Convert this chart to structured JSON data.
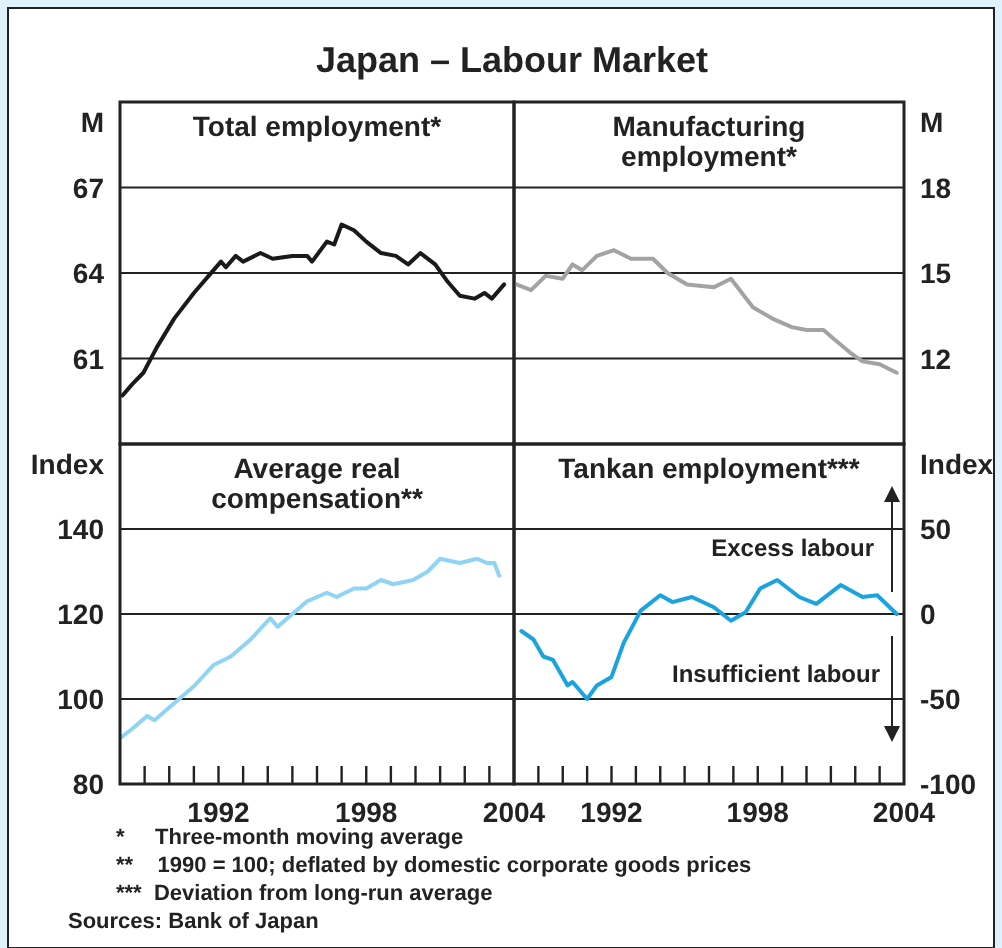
{
  "chart_data": [
    {
      "type": "line",
      "title": "Japan – Labour Market",
      "subtitle": "Total employment*",
      "ylabel": "M",
      "xlim": [
        1988,
        2004
      ],
      "ylim": [
        58,
        70
      ],
      "yticks": [
        61,
        64,
        67
      ],
      "grid": "y",
      "tick_labels": "y",
      "series": [
        {
          "color": "#1a1a1a",
          "x": [
            1988.1,
            1988.5,
            1988.95,
            1989.5,
            1990.2,
            1991.0,
            1991.8,
            1992.1,
            1992.3,
            1992.7,
            1993.0,
            1993.7,
            1994.2,
            1995.0,
            1995.6,
            1995.8,
            1996.4,
            1996.7,
            1997.0,
            1997.5,
            1998.0,
            1998.6,
            1999.2,
            1999.7,
            2000.2,
            2000.8,
            2001.3,
            2001.8,
            2002.4,
            2002.8,
            2003.1,
            2003.6
          ],
          "values": [
            59.7,
            60.1,
            60.5,
            61.4,
            62.4,
            63.3,
            64.1,
            64.4,
            64.2,
            64.6,
            64.4,
            64.7,
            64.5,
            64.6,
            64.6,
            64.4,
            65.1,
            65.0,
            65.7,
            65.5,
            65.1,
            64.7,
            64.6,
            64.3,
            64.7,
            64.3,
            63.7,
            63.2,
            63.1,
            63.3,
            63.1,
            63.6
          ]
        }
      ]
    },
    {
      "type": "line",
      "title": "Manufacturing employment*",
      "y2label": "M",
      "xlim": [
        1988,
        2004
      ],
      "y2lim": [
        9,
        21
      ],
      "y2ticks": [
        12,
        15,
        18
      ],
      "grid": "y",
      "tick_labels": "y2",
      "series": [
        {
          "color": "#a3a3a3",
          "axis": "y2",
          "x": [
            1988.1,
            1988.7,
            1989.3,
            1990.0,
            1990.4,
            1990.8,
            1991.4,
            1992.1,
            1992.8,
            1993.7,
            1994.3,
            1995.1,
            1996.2,
            1996.9,
            1997.8,
            1998.6,
            1999.4,
            2000.0,
            2000.7,
            2001.1,
            2001.8,
            2002.3,
            2003.0,
            2003.7
          ],
          "values": [
            14.6,
            14.4,
            14.9,
            14.8,
            15.3,
            15.1,
            15.6,
            15.8,
            15.5,
            15.5,
            15.0,
            14.6,
            14.5,
            14.8,
            13.8,
            13.4,
            13.1,
            13.0,
            13.0,
            12.7,
            12.2,
            11.9,
            11.8,
            11.5
          ]
        }
      ]
    },
    {
      "type": "line",
      "title": "Average real compensation**",
      "ylabel": "Index",
      "xlim": [
        1988,
        2004
      ],
      "ylim": [
        80,
        160
      ],
      "yticks": [
        80,
        100,
        120,
        140
      ],
      "xticks": [
        {
          "value": 1989,
          "label": null
        },
        {
          "value": 1990,
          "label": null
        },
        {
          "value": 1991,
          "label": null
        },
        1992,
        {
          "value": 1993,
          "label": null
        },
        {
          "value": 1994,
          "label": null
        },
        {
          "value": 1995,
          "label": null
        },
        {
          "value": 1996,
          "label": null
        },
        {
          "value": 1997,
          "label": null
        },
        1998,
        {
          "value": 1999,
          "label": null
        },
        {
          "value": 2000,
          "label": null
        },
        {
          "value": 2001,
          "label": null
        },
        {
          "value": 2002,
          "label": null
        },
        {
          "value": 2003,
          "label": null
        },
        2004
      ],
      "grid": "y",
      "annotations": [
        "*     Three-month moving average",
        "**    1990 = 100; deflated by domestic corporate goods prices",
        "***  Deviation from long-run average",
        "Sources: Bank of Japan"
      ],
      "series": [
        {
          "color": "#8fd4f5",
          "x": [
            1988.05,
            1988.5,
            1989.1,
            1989.4,
            1990.0,
            1990.4,
            1991.0,
            1991.8,
            1992.5,
            1993.3,
            1994.1,
            1994.4,
            1995.0,
            1995.6,
            1996.4,
            1996.8,
            1997.5,
            1998.0,
            1998.6,
            1999.1,
            1999.9,
            2000.5,
            2001.0,
            2001.8,
            2002.5,
            2002.9,
            2003.2,
            2003.4
          ],
          "values": [
            91,
            93,
            96,
            95,
            98,
            100,
            103,
            108,
            110,
            114,
            119,
            117,
            120,
            123,
            125,
            124,
            126,
            126,
            128,
            127,
            128,
            130,
            133,
            132,
            133,
            132,
            132,
            129
          ]
        }
      ]
    },
    {
      "type": "line",
      "title": "Tankan employment***",
      "y2label": "Index",
      "xlim": [
        1988,
        2004
      ],
      "y2lim": [
        -100,
        100
      ],
      "y2ticks": [
        -100,
        -50,
        0,
        50
      ],
      "xticks": [
        {
          "value": 1989,
          "label": null
        },
        {
          "value": 1990,
          "label": null
        },
        {
          "value": 1991,
          "label": null
        },
        1992,
        {
          "value": 1993,
          "label": null
        },
        {
          "value": 1994,
          "label": null
        },
        {
          "value": 1995,
          "label": null
        },
        {
          "value": 1996,
          "label": null
        },
        {
          "value": 1997,
          "label": null
        },
        1998,
        {
          "value": 1999,
          "label": null
        },
        {
          "value": 2000,
          "label": null
        },
        {
          "value": 2001,
          "label": null
        },
        {
          "value": 2002,
          "label": null
        },
        {
          "value": 2003,
          "label": null
        },
        2004
      ],
      "grid": "y",
      "annotations": [
        "Excess labour",
        "Insufficient labour"
      ],
      "series": [
        {
          "color": "#1ba3e0",
          "axis": "y2",
          "x": [
            1988.3,
            1988.8,
            1989.2,
            1989.6,
            1990.2,
            1990.4,
            1991.0,
            1991.4,
            1992.0,
            1992.5,
            1993.2,
            1994.0,
            1994.5,
            1995.3,
            1996.2,
            1996.9,
            1997.5,
            1998.1,
            1998.8,
            1999.7,
            2000.4,
            2001.4,
            2002.3,
            2002.9,
            2003.7
          ],
          "values": [
            -10,
            -15,
            -25,
            -27,
            -42,
            -40,
            -50,
            -42,
            -37,
            -17,
            2,
            11,
            7,
            10,
            4,
            -4,
            1,
            15,
            20,
            10,
            6,
            17,
            10,
            11,
            0
          ]
        }
      ]
    }
  ]
}
